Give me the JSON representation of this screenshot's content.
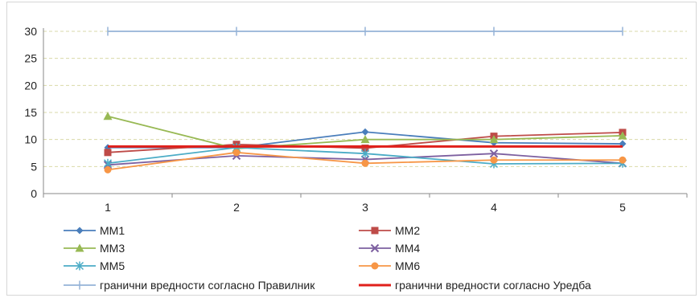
{
  "chart_data": {
    "type": "line",
    "categories": [
      "1",
      "2",
      "3",
      "4",
      "5"
    ],
    "ylim": [
      0,
      30
    ],
    "yticks": [
      "0",
      "5",
      "10",
      "15",
      "20",
      "25",
      "30"
    ],
    "grid": "horizontal dashed",
    "legend_position": "bottom",
    "series": [
      {
        "name": "ММ1",
        "values": [
          8.5,
          8.5,
          11.4,
          9.4,
          9.2
        ],
        "color": "#4a7ebb",
        "marker": "diamond"
      },
      {
        "name": "ММ2",
        "values": [
          7.6,
          9.1,
          8.4,
          10.6,
          11.3
        ],
        "color": "#be4b48",
        "marker": "square"
      },
      {
        "name": "ММ3",
        "values": [
          14.3,
          8.3,
          10.0,
          10.0,
          10.7
        ],
        "color": "#98b954",
        "marker": "triangle"
      },
      {
        "name": "ММ4",
        "values": [
          5.3,
          7.0,
          6.3,
          7.4,
          5.6
        ],
        "color": "#7d60a0",
        "marker": "x"
      },
      {
        "name": "ММ5",
        "values": [
          5.6,
          8.5,
          7.4,
          5.5,
          5.6
        ],
        "color": "#4bacc6",
        "marker": "star"
      },
      {
        "name": "ММ6",
        "values": [
          4.4,
          7.6,
          5.6,
          6.2,
          6.2
        ],
        "color": "#f79646",
        "marker": "circle"
      },
      {
        "name": "гранични вредности согласно Правилник",
        "values": [
          30,
          30,
          30,
          30,
          30
        ],
        "color": "#95b3d7",
        "marker": "plus"
      },
      {
        "name": "гранични вредности согласно Уредба",
        "values": [
          8.7,
          8.7,
          8.7,
          8.7,
          8.7
        ],
        "color": "#e0201b",
        "marker": "none"
      }
    ]
  }
}
